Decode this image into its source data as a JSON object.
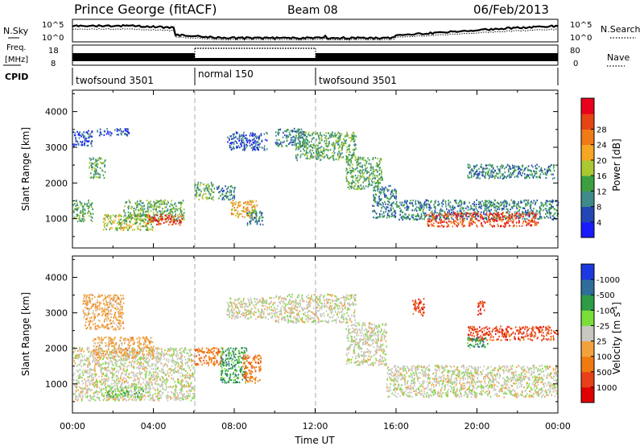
{
  "header": {
    "station": "Prince George (fitACF)",
    "beam": "Beam 08",
    "date": "06/Feb/2013"
  },
  "strip_labels": {
    "nsky": "N.Sky",
    "freq_line1": "Freq.",
    "freq_line2": "[MHz]",
    "cpid": "CPID",
    "nsearch": "N.Search",
    "nave": "Nave"
  },
  "chart_data": [
    {
      "type": "line",
      "panel": "noise",
      "series": [
        {
          "name": "N.Sky",
          "style": "solid"
        },
        {
          "name": "N.Search",
          "style": "dotted"
        }
      ],
      "ytick_labels_left": [
        "10^5",
        "10^0"
      ],
      "ytick_labels_right": [
        "10^5",
        "10^0"
      ],
      "ylim": [
        0,
        5
      ],
      "yscale": "log"
    },
    {
      "type": "line",
      "panel": "frequency",
      "ytick_labels_left": [
        "18",
        "8"
      ],
      "ytick_labels_right": [
        "80",
        "0"
      ],
      "ylim_left": [
        8,
        18
      ],
      "ylim_right": [
        0,
        80
      ],
      "series": [
        {
          "name": "Nave",
          "style": "dotted"
        }
      ]
    },
    {
      "type": "table",
      "panel": "cpid",
      "segments": [
        {
          "label": "twofsound 3501",
          "start_hour": 0,
          "end_hour": 6
        },
        {
          "label": "normal 150",
          "start_hour": 6,
          "end_hour": 12
        },
        {
          "label": "twofsound 3501",
          "start_hour": 12,
          "end_hour": 24
        }
      ]
    },
    {
      "type": "heatmap",
      "panel": "power",
      "ylabel": "Slant Range [km]",
      "yticks": [
        1000,
        2000,
        3000,
        4000
      ],
      "ytick_labels": [
        "1000",
        "2000",
        "3000",
        "4000"
      ],
      "ylim": [
        180,
        4600
      ],
      "xlim": [
        0,
        24
      ],
      "colorbar": {
        "label": "Power [dB]",
        "ticks": [
          "4",
          "8",
          "12",
          "16",
          "20",
          "24",
          "28"
        ],
        "colors": [
          "#1a1aff",
          "#2346b4",
          "#3f8a8a",
          "#3ca040",
          "#a9c832",
          "#f5a623",
          "#f07a17",
          "#e64414",
          "#e8001c"
        ]
      },
      "echo_regions": [
        {
          "h0": 0.0,
          "h1": 1.0,
          "r0": 3000,
          "r1": 3450,
          "level": 1
        },
        {
          "h0": 0.8,
          "h1": 1.6,
          "r0": 2100,
          "r1": 2700,
          "level": 3
        },
        {
          "h0": 1.2,
          "h1": 2.8,
          "r0": 3300,
          "r1": 3500,
          "level": 1
        },
        {
          "h0": 0.0,
          "h1": 1.0,
          "r0": 900,
          "r1": 1500,
          "level": 3
        },
        {
          "h0": 1.5,
          "h1": 4.0,
          "r0": 650,
          "r1": 1100,
          "level": 4
        },
        {
          "h0": 2.5,
          "h1": 5.5,
          "r0": 900,
          "r1": 1500,
          "level": 3
        },
        {
          "h0": 3.6,
          "h1": 5.4,
          "r0": 800,
          "r1": 1100,
          "level": 7
        },
        {
          "h0": 6.0,
          "h1": 7.0,
          "r0": 1500,
          "r1": 2000,
          "level": 3
        },
        {
          "h0": 7.1,
          "h1": 8.0,
          "r0": 1500,
          "r1": 1900,
          "level": 2
        },
        {
          "h0": 7.8,
          "h1": 9.1,
          "r0": 1000,
          "r1": 1500,
          "level": 5
        },
        {
          "h0": 8.6,
          "h1": 9.4,
          "r0": 800,
          "r1": 1200,
          "level": 2
        },
        {
          "h0": 7.6,
          "h1": 9.6,
          "r0": 2900,
          "r1": 3400,
          "level": 1
        },
        {
          "h0": 10.0,
          "h1": 11.5,
          "r0": 3000,
          "r1": 3500,
          "level": 2
        },
        {
          "h0": 11.0,
          "h1": 14.0,
          "r0": 2600,
          "r1": 3400,
          "level": 3
        },
        {
          "h0": 13.5,
          "h1": 15.3,
          "r0": 1800,
          "r1": 2700,
          "level": 3
        },
        {
          "h0": 14.8,
          "h1": 16.0,
          "r0": 1000,
          "r1": 1900,
          "level": 2
        },
        {
          "h0": 16.0,
          "h1": 24.0,
          "r0": 950,
          "r1": 1500,
          "level": 2
        },
        {
          "h0": 17.5,
          "h1": 23.0,
          "r0": 750,
          "r1": 1150,
          "level": 7
        },
        {
          "h0": 19.5,
          "h1": 23.8,
          "r0": 2100,
          "r1": 2500,
          "level": 2
        }
      ]
    },
    {
      "type": "heatmap",
      "panel": "velocity",
      "ylabel": "Slant Range [km]",
      "xlabel": "Time UT",
      "xticks": [
        0,
        4,
        8,
        12,
        16,
        20,
        24
      ],
      "xtick_labels": [
        "00:00",
        "04:00",
        "08:00",
        "12:00",
        "16:00",
        "20:00",
        "00:00"
      ],
      "yticks": [
        1000,
        2000,
        3000,
        4000
      ],
      "ytick_labels": [
        "1000",
        "2000",
        "3000",
        "4000"
      ],
      "ylim": [
        180,
        4600
      ],
      "xlim": [
        0,
        24
      ],
      "colorbar": {
        "label": "Velocity [m s-1]",
        "ticks": [
          "1000",
          "500",
          "100",
          "25",
          "-25",
          "-100",
          "-500",
          "-1000"
        ],
        "colors": [
          "#1a3ae0",
          "#2f6e9a",
          "#2e9c46",
          "#7bdd3a",
          "#c8c8c0",
          "#f2a23c",
          "#f07a12",
          "#e8401a",
          "#e00000"
        ]
      },
      "echo_regions": [
        {
          "h0": 0.0,
          "h1": 6.0,
          "r0": 500,
          "r1": 2000,
          "cls": 4
        },
        {
          "h0": 1.5,
          "h1": 3.5,
          "r0": 600,
          "r1": 900,
          "cls": 3
        },
        {
          "h0": 1.0,
          "h1": 4.0,
          "r0": 1700,
          "r1": 2300,
          "cls": 5
        },
        {
          "h0": 0.5,
          "h1": 2.5,
          "r0": 2500,
          "r1": 3500,
          "cls": 5
        },
        {
          "h0": 6.0,
          "h1": 7.4,
          "r0": 1500,
          "r1": 2000,
          "cls": 6
        },
        {
          "h0": 7.3,
          "h1": 8.6,
          "r0": 1000,
          "r1": 2000,
          "cls": 2
        },
        {
          "h0": 8.4,
          "h1": 9.3,
          "r0": 1000,
          "r1": 1800,
          "cls": 6
        },
        {
          "h0": 7.6,
          "h1": 10.0,
          "r0": 2800,
          "r1": 3400,
          "cls": 4
        },
        {
          "h0": 10.0,
          "h1": 14.0,
          "r0": 2700,
          "r1": 3500,
          "cls": 4
        },
        {
          "h0": 13.5,
          "h1": 15.5,
          "r0": 1500,
          "r1": 2700,
          "cls": 4
        },
        {
          "h0": 15.5,
          "h1": 24.0,
          "r0": 600,
          "r1": 1500,
          "cls": 4
        },
        {
          "h0": 19.5,
          "h1": 24.0,
          "r0": 2200,
          "r1": 2600,
          "cls": 7
        },
        {
          "h0": 19.5,
          "h1": 20.5,
          "r0": 2000,
          "r1": 2300,
          "cls": 2
        },
        {
          "h0": 16.8,
          "h1": 17.4,
          "r0": 2900,
          "r1": 3400,
          "cls": 7
        },
        {
          "h0": 20.0,
          "h1": 20.4,
          "r0": 2900,
          "r1": 3300,
          "cls": 7
        }
      ]
    }
  ]
}
